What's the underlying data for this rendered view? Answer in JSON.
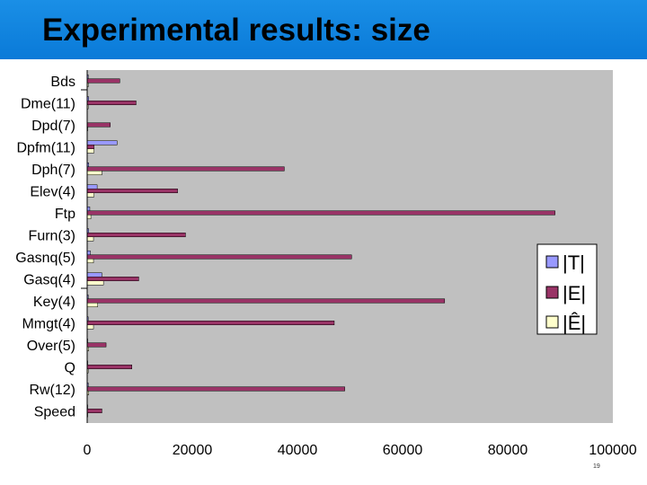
{
  "slide": {
    "title": "Experimental results: size",
    "page_number": "19"
  },
  "colors": {
    "title_bar": "#1184e0",
    "plot_bg": "#c0c0c0",
    "T": "#9999ff",
    "E": "#993366",
    "E_hat": "#ffffcc"
  },
  "chart_data": {
    "type": "bar",
    "orientation": "horizontal",
    "categories": [
      "Bds",
      "Dme(11)",
      "Dpd(7)",
      "Dpfm(11)",
      "Dph(7)",
      "Elev(4)",
      "Ftp",
      "Furn(3)",
      "Gasnq(5)",
      "Gasq(4)",
      "Key(4)",
      "Mmgt(4)",
      "Over(5)",
      "Q",
      "Rw(12)",
      "Speed"
    ],
    "series": [
      {
        "name": "|T|",
        "values": [
          200,
          300,
          0,
          5700,
          300,
          1900,
          500,
          300,
          600,
          2800,
          200,
          200,
          100,
          100,
          200,
          100
        ]
      },
      {
        "name": "|E|",
        "values": [
          6200,
          9300,
          4400,
          1300,
          37500,
          17200,
          89000,
          18700,
          50300,
          9800,
          68000,
          47000,
          3600,
          8500,
          49000,
          2800
        ]
      },
      {
        "name": "|Ê|",
        "values": [
          200,
          200,
          100,
          1300,
          2800,
          1300,
          700,
          1200,
          1200,
          3100,
          2000,
          1200,
          300,
          200,
          300,
          100
        ]
      }
    ],
    "xlim": [
      0,
      100000
    ],
    "xticks": [
      "0",
      "20000",
      "40000",
      "60000",
      "80000",
      "100000"
    ],
    "xtick_values": [
      0,
      20000,
      40000,
      60000,
      80000,
      100000
    ],
    "legend": [
      "|T|",
      "|E|",
      "|Ê|"
    ],
    "legend_position": "right",
    "grid": false
  }
}
